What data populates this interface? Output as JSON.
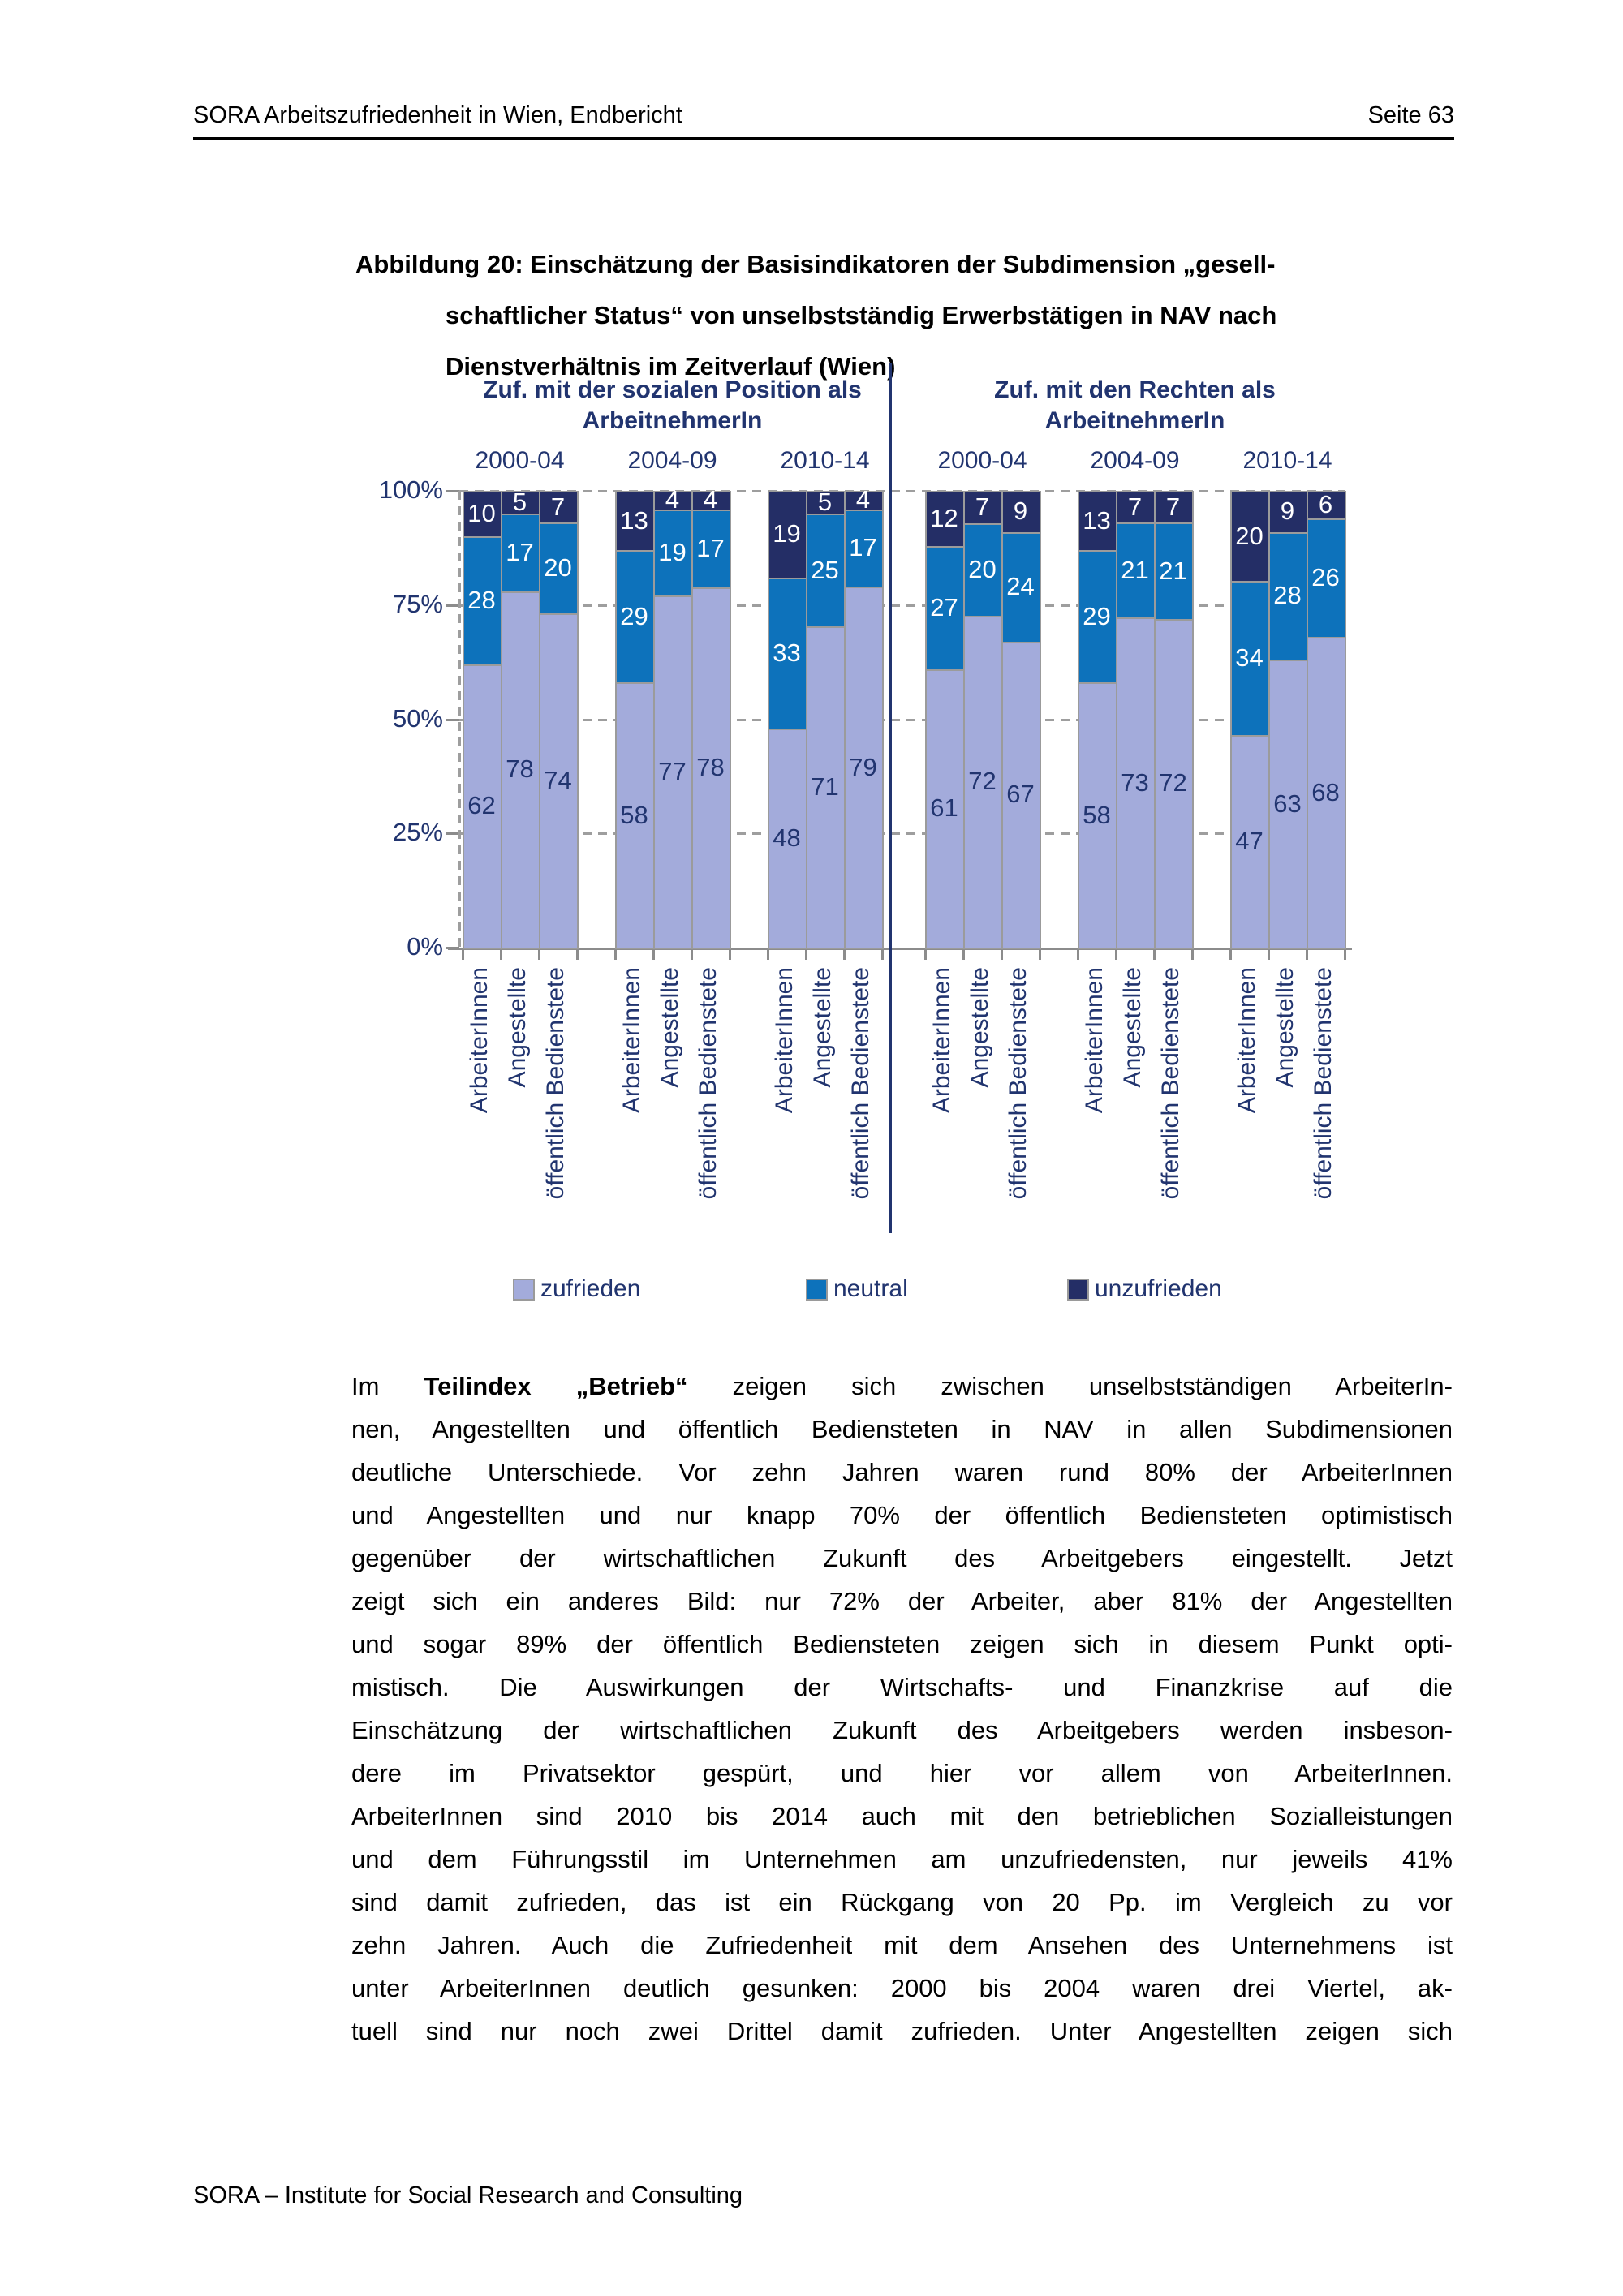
{
  "header": {
    "left": "SORA Arbeitszufriedenheit in Wien, Endbericht",
    "page": "Seite 63"
  },
  "title": {
    "lines": [
      "Abbildung 20: Einschätzung der Basisindikatoren der Subdimension „gesell-",
      "schaftlicher Status“ von unselbstständig Erwerbstätigen in NAV nach",
      "Dienstverhältnis im Zeitverlauf (Wien)"
    ]
  },
  "chart_data": {
    "type": "bar",
    "subtype": "stacked-100-percent",
    "unit": "%",
    "y_axis": {
      "ticks": [
        "100%",
        "75%",
        "50%",
        "25%",
        "0%"
      ],
      "min": 0,
      "max": 100,
      "grid": "dashed"
    },
    "categories": [
      "ArbeiterInnen",
      "Angestellte",
      "öffentlich Bedienstete"
    ],
    "series_names": [
      "zufrieden",
      "neutral",
      "unzufrieden"
    ],
    "colors": {
      "zufrieden": "#a3abdb",
      "neutral": "#0d72bb",
      "unzufrieden": "#242e66",
      "text_navy": "#21346f",
      "bar_border": "#9b9b9b",
      "grid_gray": "#9e9e9e"
    },
    "legend": [
      "zufrieden",
      "neutral",
      "unzufrieden"
    ],
    "legend_position": "bottom",
    "panels": [
      {
        "title_lines": [
          "Zuf. mit der sozialen Position als",
          "ArbeitnehmerIn"
        ],
        "groups": [
          {
            "period": "2000-04",
            "values": [
              [
                62,
                28,
                10
              ],
              [
                78,
                17,
                5
              ],
              [
                74,
                20,
                7
              ]
            ]
          },
          {
            "period": "2004-09",
            "values": [
              [
                58,
                29,
                13
              ],
              [
                77,
                19,
                4
              ],
              [
                78,
                17,
                4
              ]
            ]
          },
          {
            "period": "2010-14",
            "values": [
              [
                48,
                33,
                19
              ],
              [
                71,
                25,
                5
              ],
              [
                79,
                17,
                4
              ]
            ]
          }
        ]
      },
      {
        "title_lines": [
          "Zuf. mit den Rechten als",
          "ArbeitnehmerIn"
        ],
        "groups": [
          {
            "period": "2000-04",
            "values": [
              [
                61,
                27,
                12
              ],
              [
                72,
                20,
                7
              ],
              [
                67,
                24,
                9
              ]
            ]
          },
          {
            "period": "2004-09",
            "values": [
              [
                58,
                29,
                13
              ],
              [
                73,
                21,
                7
              ],
              [
                72,
                21,
                7
              ]
            ]
          },
          {
            "period": "2010-14",
            "values": [
              [
                47,
                34,
                20
              ],
              [
                63,
                28,
                9
              ],
              [
                68,
                26,
                6
              ]
            ]
          }
        ]
      }
    ]
  },
  "body": {
    "line1": {
      "pre": "Im",
      "bold": "Teilindex „Betrieb“",
      "post": "zeigen sich zwischen unselbstständigen ArbeiterIn-"
    },
    "lines": [
      "nen, Angestellten und öffentlich Bediensteten in NAV in allen Subdimensionen",
      "deutliche Unterschiede. Vor zehn Jahren waren rund 80% der ArbeiterInnen",
      "und Angestellten und nur knapp 70% der öffentlich Bediensteten optimistisch",
      "gegenüber der wirtschaftlichen Zukunft des Arbeitgebers eingestellt. Jetzt",
      "zeigt sich ein anderes Bild: nur 72% der Arbeiter, aber 81% der Angestellten",
      "und sogar 89% der öffentlich Bediensteten zeigen sich in diesem Punkt opti-",
      "mistisch. Die Auswirkungen der Wirtschafts- und Finanzkrise auf die",
      "Einschätzung der wirtschaftlichen Zukunft des Arbeitgebers werden insbeson-",
      "dere im Privatsektor gespürt, und hier vor allem von ArbeiterInnen.",
      "ArbeiterInnen sind 2010 bis 2014 auch mit den betrieblichen Sozialleistungen",
      "und dem Führungsstil im Unternehmen am unzufriedensten, nur jeweils 41%",
      "sind damit zufrieden, das ist ein Rückgang von 20 Pp. im Vergleich zu vor",
      "zehn Jahren. Auch die Zufriedenheit mit dem Ansehen des Unternehmens ist",
      "unter ArbeiterInnen deutlich gesunken: 2000 bis 2004 waren drei Viertel, ak-",
      "tuell sind nur noch zwei Drittel damit zufrieden. Unter Angestellten zeigen sich"
    ]
  },
  "footer": {
    "text": "SORA – Institute for Social Research and Consulting"
  }
}
